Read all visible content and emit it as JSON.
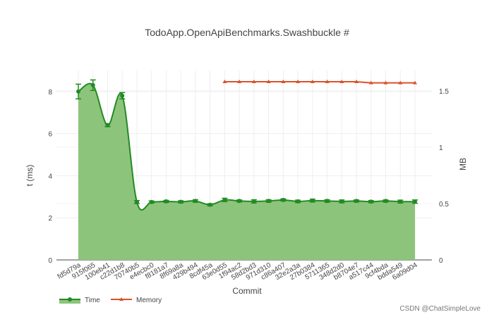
{
  "watermark": "CSDN @ChatSimpleLove",
  "chart_data": {
    "type": "line",
    "title": "TodoApp.OpenApiBenchmarks.Swashbuckle #",
    "xlabel": "Commit",
    "ylabel": "t (ms)",
    "y2label": "MB",
    "categories": [
      "fd5d79a",
      "915f065",
      "100eb41",
      "c22d1b8",
      "70740b5",
      "e4ecbc0",
      "f8181a7",
      "8f69a8a",
      "429b494",
      "8cdf45a",
      "63e0d55",
      "1f94ac2",
      "58d2bd3",
      "971d310",
      "c86a407",
      "32e2a3a",
      "27b0384",
      "5711365",
      "348d2d0",
      "b8704e7",
      "a517c44",
      "9cf4bda",
      "bdda549",
      "6a09d04"
    ],
    "ylim": [
      0,
      9
    ],
    "y_ticks": [
      0,
      2,
      4,
      6,
      8
    ],
    "y2lim": [
      0,
      1.68
    ],
    "y2_ticks": [
      0,
      0.5,
      1,
      1.5
    ],
    "grid": true,
    "legend_position": "bottom-left",
    "series": [
      {
        "name": "Time",
        "axis": "left",
        "type": "area",
        "color": "#228B22",
        "fill_color": "#8DC47C",
        "marker": "circle",
        "values": [
          8.0,
          8.3,
          6.4,
          7.8,
          2.75,
          2.75,
          2.78,
          2.76,
          2.8,
          2.62,
          2.85,
          2.8,
          2.78,
          2.8,
          2.85,
          2.78,
          2.82,
          2.8,
          2.78,
          2.8,
          2.77,
          2.8,
          2.77,
          2.77
        ],
        "error": [
          0.35,
          0.25,
          0.07,
          0.15,
          0.07,
          0.05,
          0.05,
          0.05,
          0.06,
          0.05,
          0.08,
          0.05,
          0.08,
          0.06,
          0.05,
          0.06,
          0.07,
          0.06,
          0.07,
          0.05,
          0.05,
          0.05,
          0.07,
          0.08
        ]
      },
      {
        "name": "Memory",
        "axis": "right",
        "type": "line",
        "color": "#D9532B",
        "marker": "triangle-up",
        "values": [
          null,
          null,
          null,
          null,
          null,
          null,
          null,
          null,
          null,
          null,
          1.58,
          1.58,
          1.58,
          1.58,
          1.58,
          1.58,
          1.58,
          1.58,
          1.58,
          1.58,
          1.57,
          1.57,
          1.57,
          1.57
        ]
      }
    ]
  }
}
